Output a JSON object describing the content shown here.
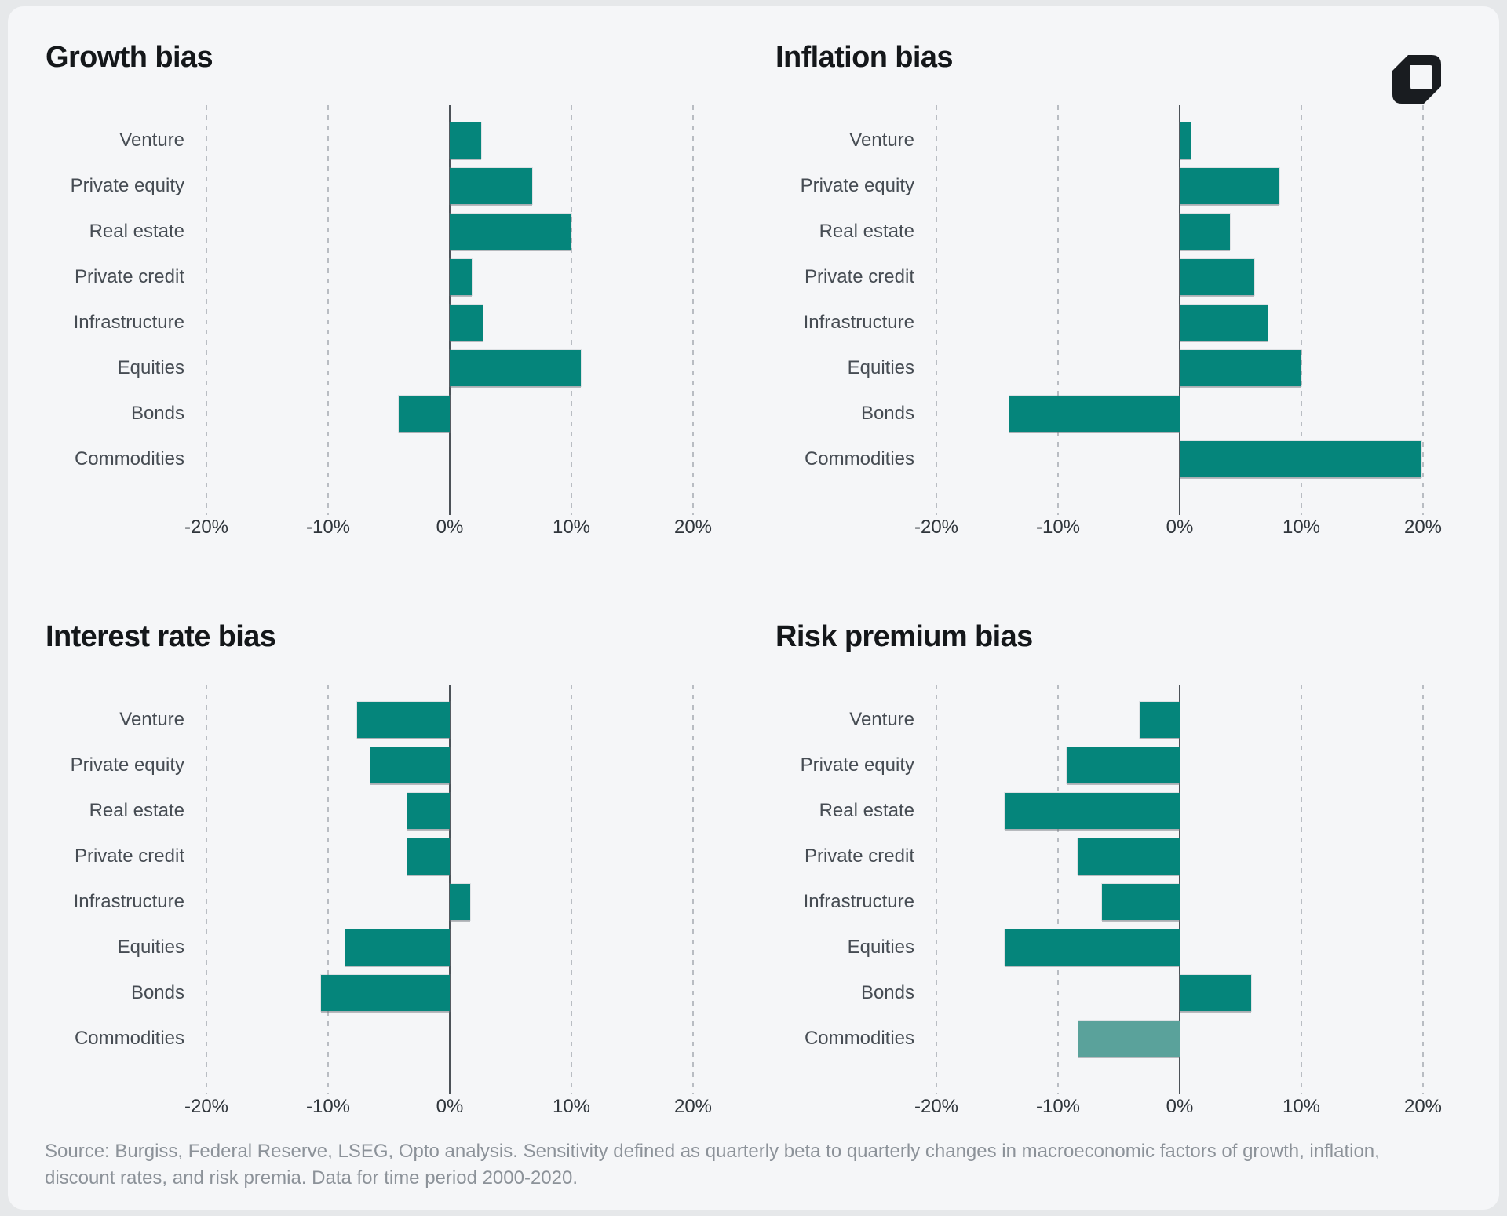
{
  "page": {
    "background": "#e6e8ea",
    "card_background": "#f5f6f8",
    "logo": "opto-logo-mark",
    "footer_lines": [
      "Source: Burgiss, Federal Reserve, LSEG, Opto analysis. Sensitivity defined as quarterly beta to quarterly changes in macroeconomic factors of growth, inflation,",
      "discount rates, and risk premia. Data for time period 2000-2020."
    ]
  },
  "colors": {
    "bar": "#05857b",
    "bar_light": "#5aa29b",
    "gridline": "#b9bdc3",
    "zero_axis": "#4c5258",
    "title_text": "#14171a",
    "category_text": "#464c53",
    "tick_text": "#2f353b",
    "footer_text": "#8c9299"
  },
  "chart_data": [
    {
      "type": "bar",
      "orientation": "horizontal",
      "title": "Growth bias",
      "categories": [
        "Venture",
        "Private equity",
        "Real estate",
        "Private credit",
        "Infrastructure",
        "Equities",
        "Bonds",
        "Commodities"
      ],
      "values": [
        2.6,
        6.8,
        10.0,
        1.8,
        2.7,
        10.8,
        -4.2,
        0
      ],
      "unit": "%",
      "xlim": [
        -20,
        20
      ],
      "xticks": [
        "-20%",
        "-10%",
        "0%",
        "10%",
        "20%"
      ],
      "grid": "dashed-vertical",
      "legend": "none"
    },
    {
      "type": "bar",
      "orientation": "horizontal",
      "title": "Inflation bias",
      "categories": [
        "Venture",
        "Private equity",
        "Real estate",
        "Private credit",
        "Infrastructure",
        "Equities",
        "Bonds",
        "Commodities"
      ],
      "values": [
        0.9,
        8.2,
        4.1,
        6.1,
        7.2,
        10.0,
        -14.0,
        19.9
      ],
      "unit": "%",
      "xlim": [
        -20,
        20
      ],
      "xticks": [
        "-20%",
        "-10%",
        "0%",
        "10%",
        "20%"
      ],
      "grid": "dashed-vertical",
      "legend": "none"
    },
    {
      "type": "bar",
      "orientation": "horizontal",
      "title": "Interest rate bias",
      "categories": [
        "Venture",
        "Private equity",
        "Real estate",
        "Private credit",
        "Infrastructure",
        "Equities",
        "Bonds",
        "Commodities"
      ],
      "values": [
        -7.6,
        -6.5,
        -3.5,
        -3.5,
        1.7,
        -8.6,
        -10.6,
        0
      ],
      "unit": "%",
      "xlim": [
        -20,
        20
      ],
      "xticks": [
        "-20%",
        "-10%",
        "0%",
        "10%",
        "20%"
      ],
      "grid": "dashed-vertical",
      "legend": "none"
    },
    {
      "type": "bar",
      "orientation": "horizontal",
      "title": "Risk premium bias",
      "categories": [
        "Venture",
        "Private equity",
        "Real estate",
        "Private credit",
        "Infrastructure",
        "Equities",
        "Bonds",
        "Commodities"
      ],
      "values": [
        -3.3,
        -9.3,
        -14.4,
        -8.4,
        -6.4,
        -14.4,
        5.9,
        -8.3
      ],
      "bar_color_overrides": [
        null,
        null,
        null,
        null,
        null,
        null,
        null,
        "#5aa29b"
      ],
      "unit": "%",
      "xlim": [
        -20,
        20
      ],
      "xticks": [
        "-20%",
        "-10%",
        "0%",
        "10%",
        "20%"
      ],
      "grid": "dashed-vertical",
      "legend": "none"
    }
  ]
}
